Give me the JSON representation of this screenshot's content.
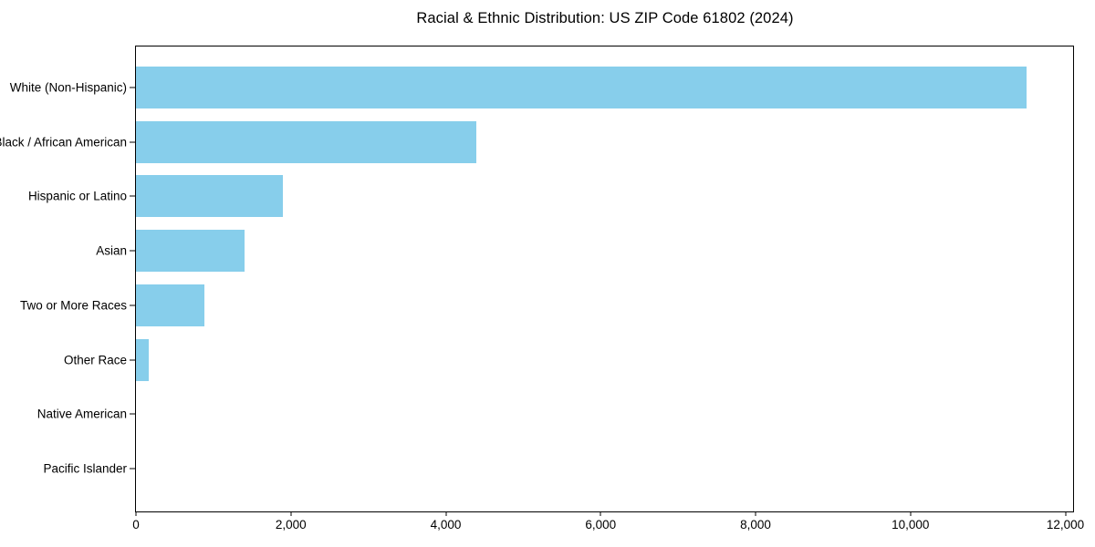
{
  "chart_data": {
    "type": "bar",
    "orientation": "horizontal",
    "title": "Racial & Ethnic Distribution: US ZIP Code 61802 (2024)",
    "categories": [
      "White (Non-Hispanic)",
      "Black / African American",
      "Hispanic or Latino",
      "Asian",
      "Two or More Races",
      "Other Race",
      "Native American",
      "Pacific Islander"
    ],
    "values": [
      11500,
      4400,
      1900,
      1400,
      880,
      170,
      0,
      0
    ],
    "xlabel": "",
    "ylabel": "",
    "xlim": [
      0,
      12100
    ],
    "x_ticks": [
      0,
      2000,
      4000,
      6000,
      8000,
      10000,
      12000
    ],
    "x_tick_labels": [
      "0",
      "2,000",
      "4,000",
      "6,000",
      "8,000",
      "10,000",
      "12,000"
    ],
    "bar_color": "#87CEEB",
    "background_color": "#ffffff",
    "frame_color": "#000000",
    "grid": false,
    "legend": null
  }
}
